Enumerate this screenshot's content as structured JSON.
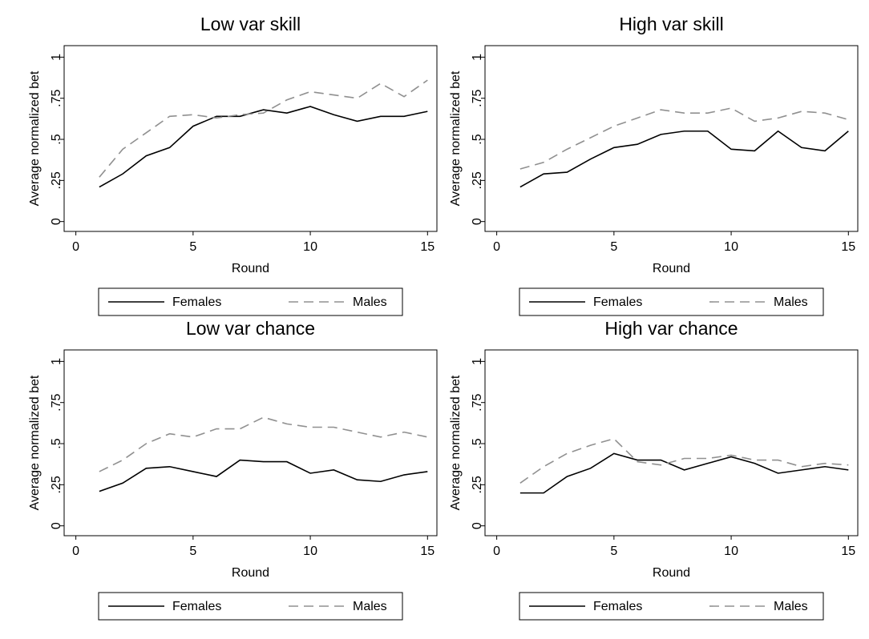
{
  "chart_data": [
    {
      "type": "line",
      "title": "Low var skill",
      "xlabel": "Round",
      "ylabel": "Average normalized bet",
      "x": [
        1,
        2,
        3,
        4,
        5,
        6,
        7,
        8,
        9,
        10,
        11,
        12,
        13,
        14,
        15
      ],
      "series": [
        {
          "name": "Females",
          "color": "#000000",
          "line_style": "solid",
          "values": [
            0.21,
            0.29,
            0.4,
            0.45,
            0.58,
            0.64,
            0.64,
            0.68,
            0.66,
            0.7,
            0.65,
            0.61,
            0.64,
            0.64,
            0.67
          ]
        },
        {
          "name": "Males",
          "color": "#909090",
          "line_style": "dash",
          "values": [
            0.27,
            0.44,
            0.54,
            0.64,
            0.65,
            0.63,
            0.65,
            0.66,
            0.74,
            0.79,
            0.77,
            0.75,
            0.84,
            0.76,
            0.86
          ]
        }
      ],
      "xlim": [
        -0.5,
        15.4
      ],
      "xticks": [
        0,
        5,
        10,
        15
      ],
      "ylim": [
        -0.06,
        1.07
      ],
      "yticks": [
        0,
        {
          "value": 0.25,
          "label": ".25"
        },
        {
          "value": 0.5,
          "label": ".5"
        },
        {
          "value": 0.75,
          "label": ".75"
        },
        1
      ],
      "legend": "bottom",
      "grid": false
    },
    {
      "type": "line",
      "title": "High var skill",
      "xlabel": "Round",
      "ylabel": "Average normalized bet",
      "x": [
        1,
        2,
        3,
        4,
        5,
        6,
        7,
        8,
        9,
        10,
        11,
        12,
        13,
        14,
        15
      ],
      "series": [
        {
          "name": "Females",
          "color": "#000000",
          "line_style": "solid",
          "values": [
            0.21,
            0.29,
            0.3,
            0.38,
            0.45,
            0.47,
            0.53,
            0.55,
            0.55,
            0.44,
            0.43,
            0.55,
            0.45,
            0.43,
            0.55
          ]
        },
        {
          "name": "Males",
          "color": "#909090",
          "line_style": "dash",
          "values": [
            0.32,
            0.36,
            0.44,
            0.51,
            0.58,
            0.63,
            0.68,
            0.66,
            0.66,
            0.69,
            0.61,
            0.63,
            0.67,
            0.66,
            0.62
          ]
        }
      ],
      "xlim": [
        -0.5,
        15.4
      ],
      "xticks": [
        0,
        5,
        10,
        15
      ],
      "ylim": [
        -0.06,
        1.07
      ],
      "yticks": [
        0,
        {
          "value": 0.25,
          "label": ".25"
        },
        {
          "value": 0.5,
          "label": ".5"
        },
        {
          "value": 0.75,
          "label": ".75"
        },
        1
      ],
      "legend": "bottom",
      "grid": false
    },
    {
      "type": "line",
      "title": "Low var chance",
      "xlabel": "Round",
      "ylabel": "Average normalized bet",
      "x": [
        1,
        2,
        3,
        4,
        5,
        6,
        7,
        8,
        9,
        10,
        11,
        12,
        13,
        14,
        15
      ],
      "series": [
        {
          "name": "Females",
          "color": "#000000",
          "line_style": "solid",
          "values": [
            0.21,
            0.26,
            0.35,
            0.36,
            0.33,
            0.3,
            0.4,
            0.39,
            0.39,
            0.32,
            0.34,
            0.28,
            0.27,
            0.31,
            0.33
          ]
        },
        {
          "name": "Males",
          "color": "#909090",
          "line_style": "dash",
          "values": [
            0.33,
            0.4,
            0.5,
            0.56,
            0.54,
            0.59,
            0.59,
            0.66,
            0.62,
            0.6,
            0.6,
            0.57,
            0.54,
            0.57,
            0.54
          ]
        }
      ],
      "xlim": [
        -0.5,
        15.4
      ],
      "xticks": [
        0,
        5,
        10,
        15
      ],
      "ylim": [
        -0.06,
        1.07
      ],
      "yticks": [
        0,
        {
          "value": 0.25,
          "label": ".25"
        },
        {
          "value": 0.5,
          "label": ".5"
        },
        {
          "value": 0.75,
          "label": ".75"
        },
        1
      ],
      "legend": "bottom",
      "grid": false
    },
    {
      "type": "line",
      "title": "High var chance",
      "xlabel": "Round",
      "ylabel": "Average normalized bet",
      "x": [
        1,
        2,
        3,
        4,
        5,
        6,
        7,
        8,
        9,
        10,
        11,
        12,
        13,
        14,
        15
      ],
      "series": [
        {
          "name": "Females",
          "color": "#000000",
          "line_style": "solid",
          "values": [
            0.2,
            0.2,
            0.3,
            0.35,
            0.44,
            0.4,
            0.4,
            0.34,
            0.38,
            0.42,
            0.38,
            0.32,
            0.34,
            0.36,
            0.34
          ]
        },
        {
          "name": "Males",
          "color": "#909090",
          "line_style": "dash",
          "values": [
            0.26,
            0.36,
            0.44,
            0.49,
            0.53,
            0.39,
            0.37,
            0.41,
            0.41,
            0.43,
            0.4,
            0.4,
            0.36,
            0.38,
            0.37
          ]
        }
      ],
      "xlim": [
        -0.5,
        15.4
      ],
      "xticks": [
        0,
        5,
        10,
        15
      ],
      "ylim": [
        -0.06,
        1.07
      ],
      "yticks": [
        0,
        {
          "value": 0.25,
          "label": ".25"
        },
        {
          "value": 0.5,
          "label": ".5"
        },
        {
          "value": 0.75,
          "label": ".75"
        },
        1
      ],
      "legend": "bottom",
      "grid": false
    }
  ]
}
